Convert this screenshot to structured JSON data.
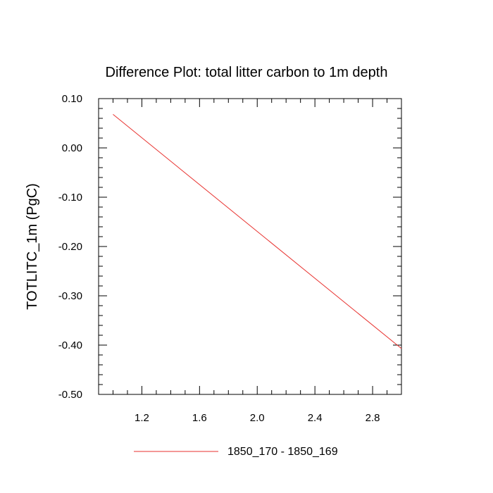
{
  "chart_data": {
    "type": "line",
    "title": "Difference Plot: total litter carbon to 1m depth",
    "xlabel": "",
    "ylabel": "TOTLITC_1m  (PgC)",
    "xlim": [
      0.9,
      3.0
    ],
    "ylim": [
      -0.5,
      0.1
    ],
    "x_ticks": [
      1.2,
      1.6,
      2.0,
      2.4,
      2.8
    ],
    "x_tick_labels": [
      "1.2",
      "1.6",
      "2.0",
      "2.4",
      "2.8"
    ],
    "y_ticks": [
      0.1,
      0.0,
      -0.1,
      -0.2,
      -0.3,
      -0.4,
      -0.5
    ],
    "y_tick_labels": [
      "0.10",
      "0.00",
      "-0.10",
      "-0.20",
      "-0.30",
      "-0.40",
      "-0.50"
    ],
    "grid": false,
    "legend_position": "bottom",
    "series": [
      {
        "name": "1850_170 - 1850_169",
        "color": "#e8322f",
        "x": [
          1,
          3
        ],
        "y": [
          0.068,
          -0.407
        ]
      }
    ]
  }
}
